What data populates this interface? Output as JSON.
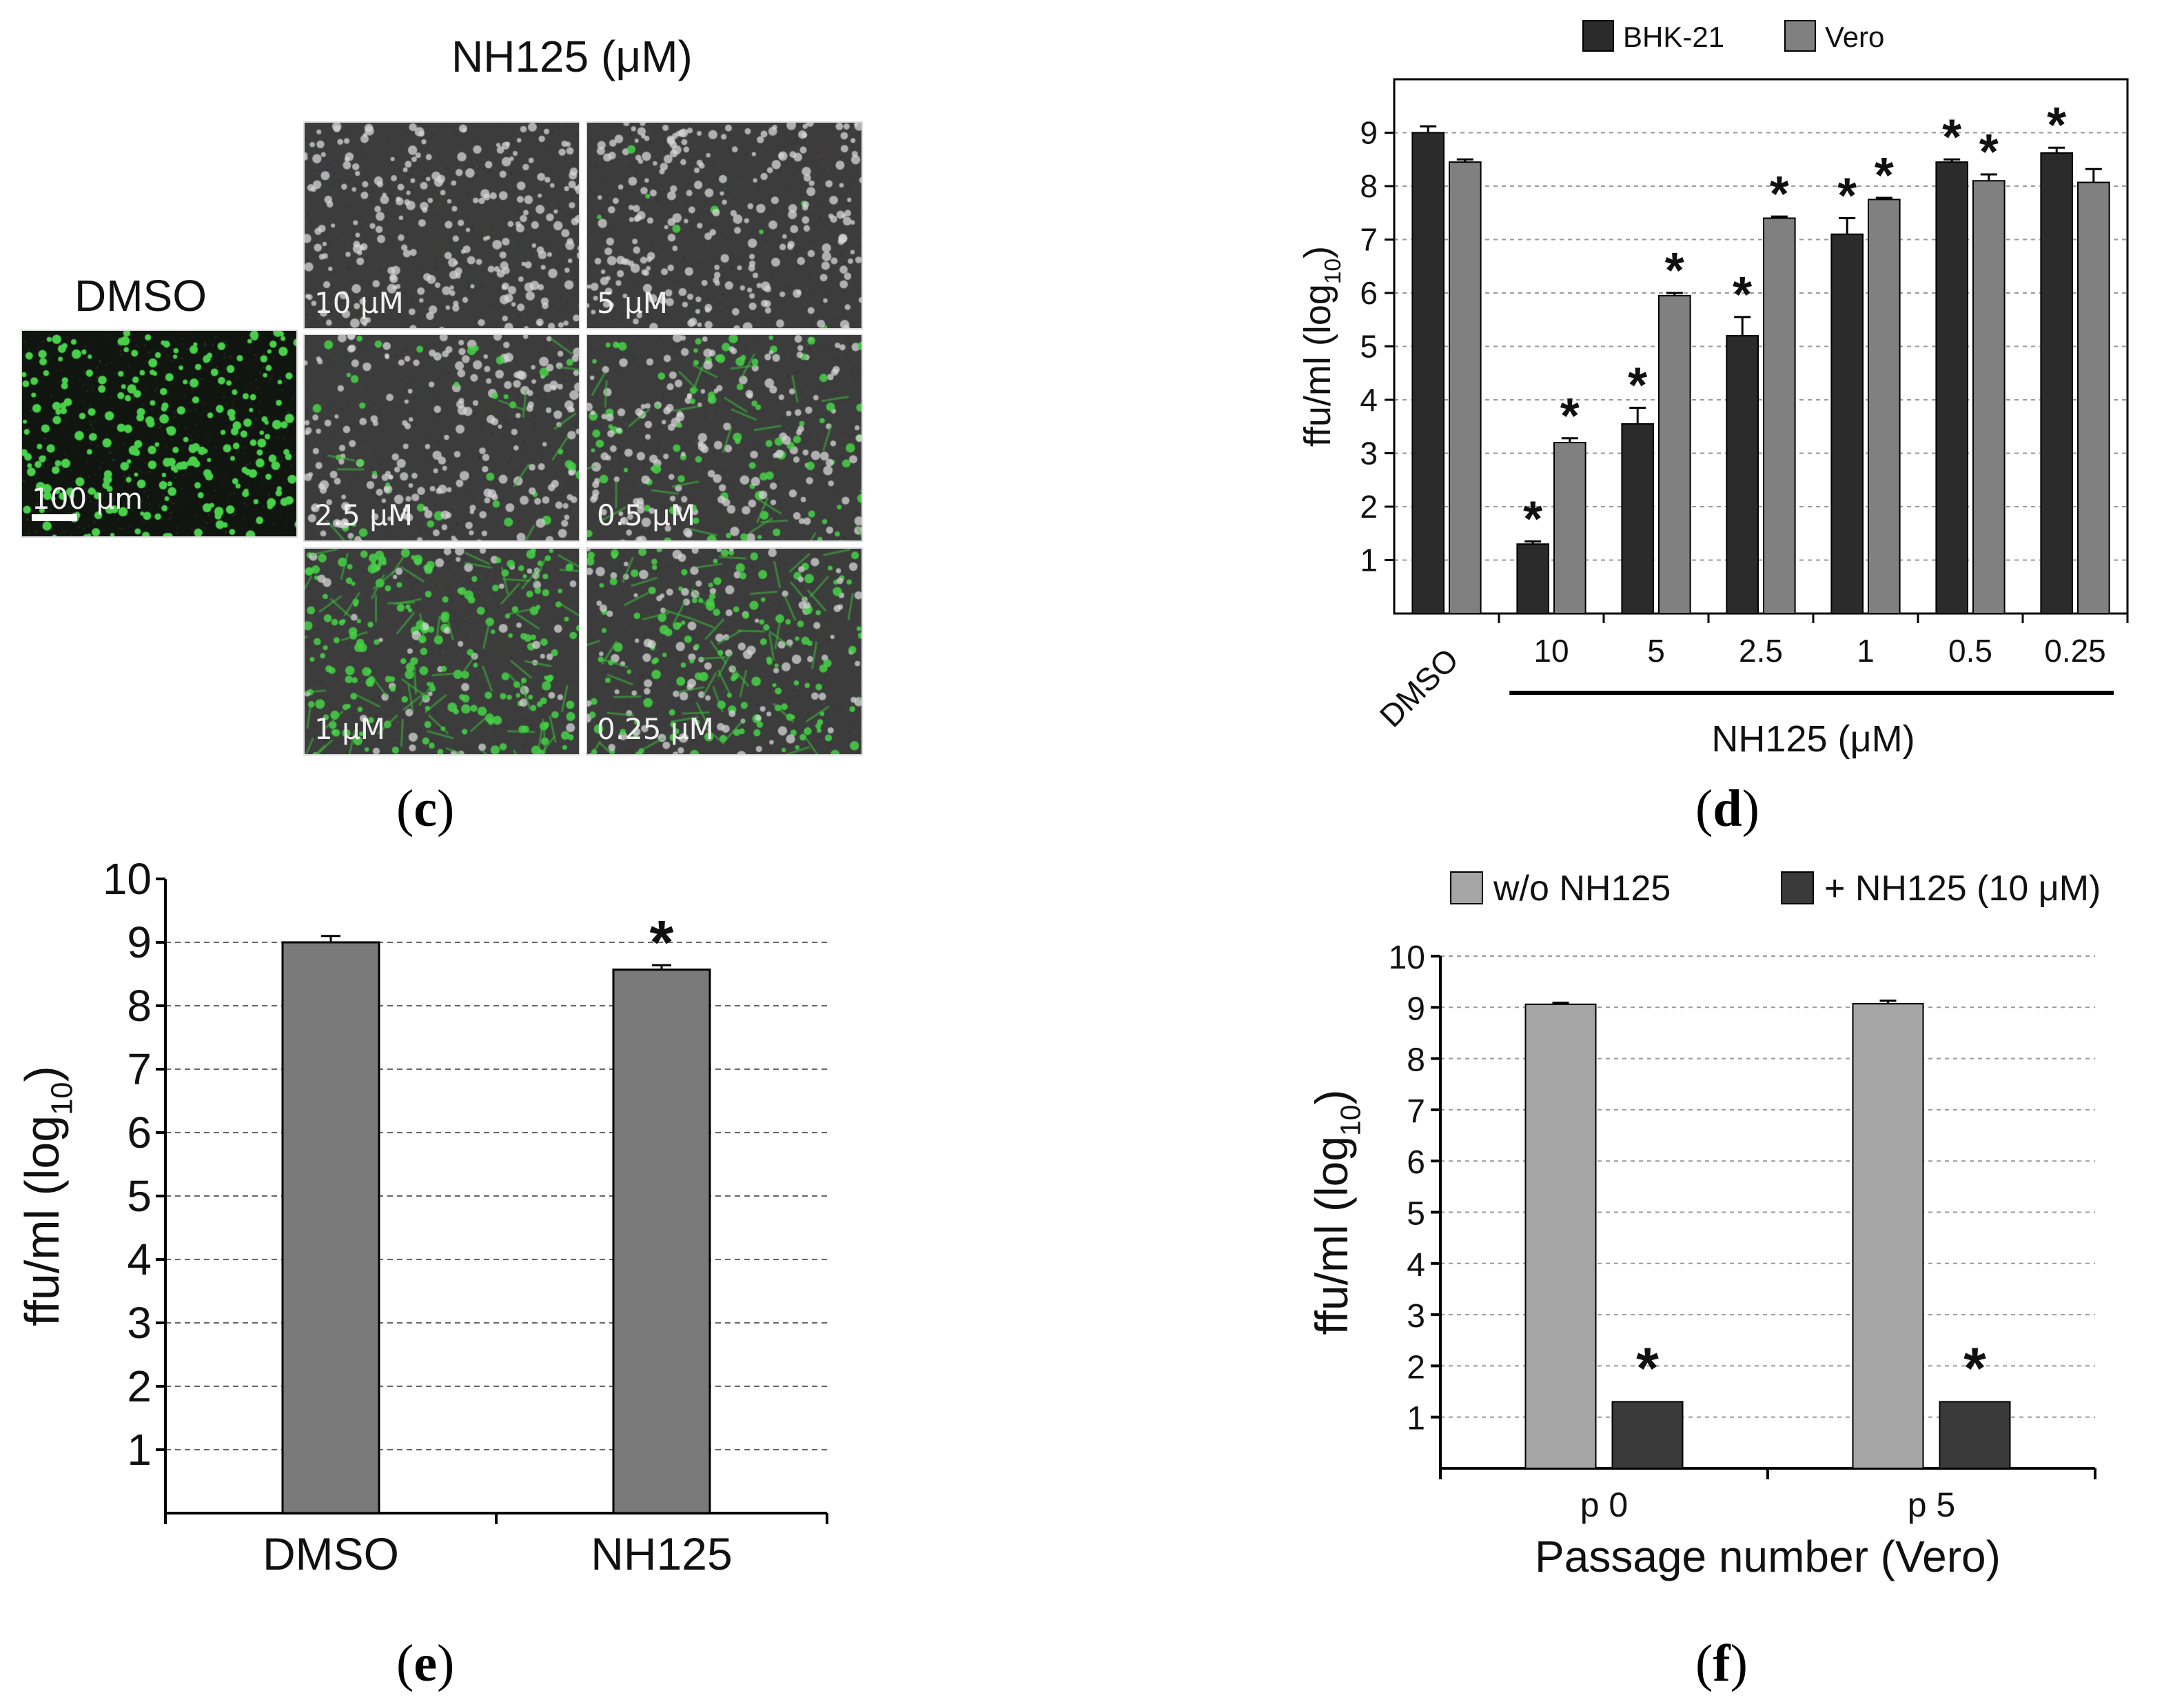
{
  "panel_c": {
    "title": "NH125 (μM)",
    "dmso_label": "DMSO",
    "scale_bar": "100 μm",
    "tiles": [
      {
        "label": "10 μM",
        "fluorescence": 0.0
      },
      {
        "label": "5 μM",
        "fluorescence": 0.05
      },
      {
        "label": "2.5 μM",
        "fluorescence": 0.15
      },
      {
        "label": "0.5 μM",
        "fluorescence": 0.35
      },
      {
        "label": "1 μM",
        "fluorescence": 0.8
      },
      {
        "label": "0.25 μM",
        "fluorescence": 0.6
      }
    ],
    "caption": "c"
  },
  "captions": {
    "c": "c",
    "d": "d",
    "e": "e",
    "f": "f"
  },
  "colors": {
    "dark_bar": "#2b2b2b",
    "gray_bar": "#808080",
    "light_bar": "#a6a6a6",
    "mid_bar": "#7a7a7a",
    "dark_f": "#3a3a3a",
    "green": "#35c43a"
  },
  "chart_data": [
    {
      "id": "d",
      "type": "bar",
      "categories": [
        "DMSO",
        "10",
        "5",
        "2.5",
        "1",
        "0.5",
        "0.25"
      ],
      "series": [
        {
          "name": "BHK-21",
          "values": [
            9.0,
            1.3,
            3.55,
            5.2,
            7.1,
            8.45,
            8.62
          ],
          "errors": [
            0.12,
            0.05,
            0.3,
            0.35,
            0.3,
            0.05,
            0.1
          ],
          "significant": [
            false,
            true,
            true,
            true,
            true,
            true,
            true
          ]
        },
        {
          "name": "Vero",
          "values": [
            8.45,
            3.2,
            5.95,
            7.4,
            7.75,
            8.1,
            8.07
          ],
          "errors": [
            0.05,
            0.08,
            0.05,
            0.03,
            0.03,
            0.12,
            0.25
          ],
          "significant": [
            false,
            true,
            true,
            true,
            true,
            true,
            false
          ]
        }
      ],
      "yticks": [
        1,
        2,
        3,
        4,
        5,
        6,
        7,
        8,
        9
      ],
      "ylim": [
        0,
        10
      ],
      "ylabel": "ffu/ml (log10)",
      "xlabel": "NH125 (μM)",
      "star": "*",
      "legend_position": "top",
      "grid": true
    },
    {
      "id": "e",
      "type": "bar",
      "categories": [
        "DMSO",
        "NH125"
      ],
      "values": [
        9.0,
        8.57
      ],
      "errors": [
        0.1,
        0.07
      ],
      "significant": [
        false,
        true
      ],
      "yticks": [
        1,
        2,
        3,
        4,
        5,
        6,
        7,
        8,
        9,
        10
      ],
      "ylim": [
        0,
        10
      ],
      "ylabel": "ffu/ml (log10)",
      "star": "*",
      "grid": true
    },
    {
      "id": "f",
      "type": "bar",
      "categories": [
        "p 0",
        "p 5"
      ],
      "series": [
        {
          "name": "w/o NH125",
          "values": [
            9.06,
            9.07
          ],
          "errors": [
            0.03,
            0.06
          ],
          "significant": [
            false,
            false
          ]
        },
        {
          "name": "+ NH125 (10 μM)",
          "values": [
            1.3,
            1.3
          ],
          "errors": [
            0,
            0
          ],
          "significant": [
            true,
            true
          ]
        }
      ],
      "yticks": [
        1,
        2,
        3,
        4,
        5,
        6,
        7,
        8,
        9,
        10
      ],
      "ylim": [
        0,
        10
      ],
      "ylabel": "ffu/ml (log10)",
      "xlabel": "Passage number (Vero)",
      "star": "*",
      "legend_position": "top",
      "grid": true
    }
  ]
}
